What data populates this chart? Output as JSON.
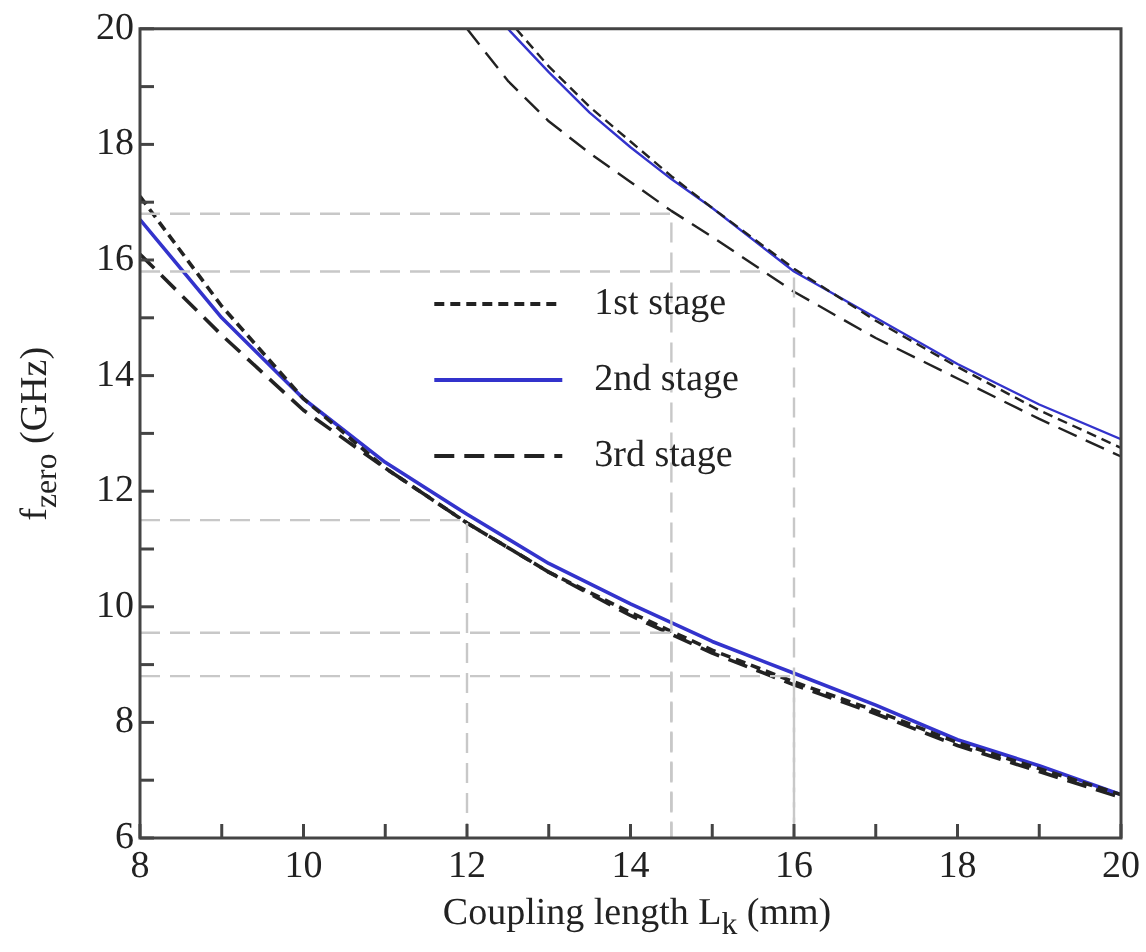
{
  "chart_data": {
    "type": "line",
    "xlabel": "Coupling length L$_{k}$ (mm)",
    "ylabel": "f$_{zero}$ (GHz)",
    "xlim": [
      8,
      20
    ],
    "ylim": [
      6,
      20
    ],
    "xticks": [
      8,
      {
        "value": 9,
        "label": null
      },
      10,
      {
        "value": 11,
        "label": null
      },
      12,
      {
        "value": 13,
        "label": null
      },
      14,
      {
        "value": 15,
        "label": null
      },
      16,
      {
        "value": 17,
        "label": null
      },
      18,
      {
        "value": 19,
        "label": null
      },
      20
    ],
    "yticks": [
      6,
      {
        "value": 7,
        "label": null
      },
      8,
      {
        "value": 9,
        "label": null
      },
      10,
      {
        "value": 11,
        "label": null
      },
      12,
      {
        "value": 13,
        "label": null
      },
      14,
      {
        "value": 15,
        "label": null
      },
      16,
      {
        "value": 17,
        "label": null
      },
      18,
      {
        "value": 19,
        "label": null
      },
      20
    ],
    "legend": "center",
    "marker": "none",
    "series": [
      {
        "color": "#c8c8c8",
        "line_style": "dashed",
        "x": [
          8,
          12,
          12
        ],
        "values": [
          11.5,
          11.5,
          6
        ]
      },
      {
        "color": "#c8c8c8",
        "line_style": "dashed",
        "x": [
          8,
          14.5,
          14.5
        ],
        "values": [
          9.55,
          9.55,
          6
        ]
      },
      {
        "color": "#c8c8c8",
        "line_style": "dashed",
        "x": [
          8,
          16,
          16
        ],
        "values": [
          8.8,
          8.8,
          6
        ]
      },
      {
        "color": "#c8c8c8",
        "line_style": "dashed",
        "x": [
          8,
          14.5,
          14.5
        ],
        "values": [
          16.8,
          16.8,
          6
        ]
      },
      {
        "color": "#c8c8c8",
        "line_style": "dashed",
        "x": [
          8,
          16,
          16
        ],
        "values": [
          15.8,
          15.8,
          6
        ]
      },
      {
        "name": "1st stage",
        "color": "#222222",
        "line_style": "dotted",
        "x": [
          8,
          9,
          10,
          11,
          12,
          13,
          14,
          15,
          16,
          17,
          18,
          19,
          20
        ],
        "values": [
          17.1,
          15.2,
          13.6,
          12.4,
          11.45,
          10.6,
          9.9,
          9.25,
          8.7,
          8.2,
          7.65,
          7.2,
          6.75
        ]
      },
      {
        "name": "2nd stage",
        "color": "#3333cc",
        "line_style": "solid",
        "x": [
          8,
          9,
          10,
          11,
          12,
          13,
          14,
          15,
          16,
          17,
          18,
          19,
          20
        ],
        "values": [
          16.7,
          15.0,
          13.6,
          12.5,
          11.6,
          10.75,
          10.05,
          9.4,
          8.85,
          8.3,
          7.7,
          7.25,
          6.75
        ]
      },
      {
        "name": "3rd stage",
        "color": "#222222",
        "line_style": "dashed",
        "x": [
          8,
          9,
          10,
          11,
          12,
          13,
          14,
          15,
          16,
          17,
          18,
          19,
          20
        ],
        "values": [
          16.1,
          14.7,
          13.4,
          12.4,
          11.45,
          10.6,
          9.85,
          9.2,
          8.65,
          8.15,
          7.6,
          7.15,
          6.7
        ]
      },
      {
        "color": "#222222",
        "line_style": "dotted",
        "x": [
          12.6,
          13,
          13.5,
          14,
          14.5,
          15,
          16,
          17,
          18,
          19,
          20
        ],
        "values": [
          20,
          19.35,
          18.65,
          18.05,
          17.45,
          16.9,
          15.85,
          14.95,
          14.15,
          13.4,
          12.75
        ]
      },
      {
        "color": "#3333cc",
        "line_style": "solid",
        "x": [
          12.5,
          13,
          13.5,
          14,
          14.5,
          15,
          16,
          17,
          18,
          19,
          20
        ],
        "values": [
          20,
          19.25,
          18.55,
          17.95,
          17.4,
          16.9,
          15.8,
          15.0,
          14.2,
          13.5,
          12.9
        ]
      },
      {
        "color": "#222222",
        "line_style": "dashed",
        "x": [
          12,
          12.5,
          13,
          13.5,
          14,
          14.5,
          15,
          16,
          17,
          18,
          19,
          20
        ],
        "values": [
          20,
          19.1,
          18.4,
          17.85,
          17.35,
          16.85,
          16.4,
          15.45,
          14.65,
          13.95,
          13.25,
          12.6
        ]
      }
    ]
  }
}
